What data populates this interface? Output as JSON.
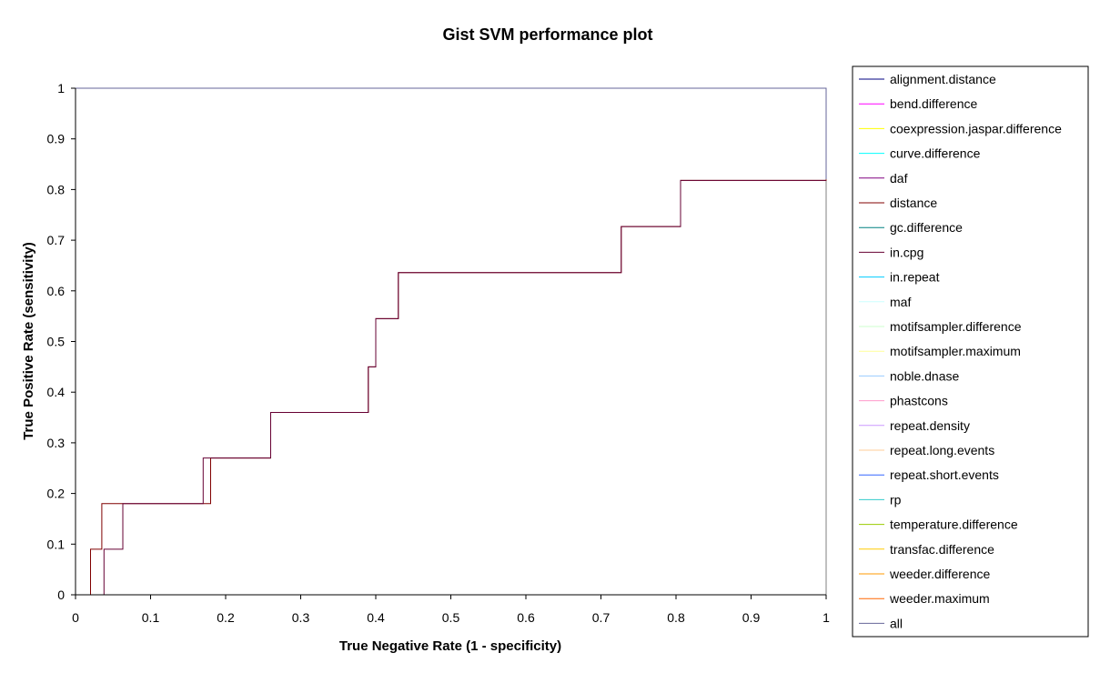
{
  "chart_data": {
    "type": "line",
    "title": "Gist SVM performance plot",
    "xlabel": "True Negative Rate (1 - specificity)",
    "ylabel": "True Positive Rate (sensitivity)",
    "xlim": [
      0,
      1
    ],
    "ylim": [
      0,
      1
    ],
    "xticks": [
      "0",
      "0.1",
      "0.2",
      "0.3",
      "0.4",
      "0.5",
      "0.6",
      "0.7",
      "0.8",
      "0.9",
      "1"
    ],
    "yticks": [
      "0",
      "0.1",
      "0.2",
      "0.3",
      "0.4",
      "0.5",
      "0.6",
      "0.7",
      "0.8",
      "0.9",
      "1"
    ],
    "grid": false,
    "legend_position": "right",
    "series": [
      {
        "name": "alignment.distance",
        "color": "#000080",
        "points": [
          [
            0.0,
            0
          ],
          [
            0.0,
            1
          ],
          [
            1,
            1
          ],
          [
            1,
            0.82
          ]
        ]
      },
      {
        "name": "bend.difference",
        "color": "#ff00ff",
        "points": [
          [
            0.0,
            0
          ],
          [
            0.0,
            1
          ],
          [
            1,
            1
          ],
          [
            1,
            0.82
          ]
        ]
      },
      {
        "name": "coexpression.jaspar.difference",
        "color": "#ffff00",
        "points": [
          [
            0.0,
            0
          ],
          [
            0.0,
            1
          ],
          [
            1,
            1
          ],
          [
            1,
            0.82
          ]
        ]
      },
      {
        "name": "curve.difference",
        "color": "#00ffff",
        "points": [
          [
            0.0,
            0
          ],
          [
            0.0,
            1
          ],
          [
            1,
            1
          ],
          [
            1,
            0.82
          ]
        ]
      },
      {
        "name": "daf",
        "color": "#800080",
        "points": [
          [
            0.0,
            0
          ],
          [
            0.0,
            1
          ],
          [
            1,
            1
          ],
          [
            1,
            0.82
          ]
        ]
      },
      {
        "name": "distance",
        "color": "#800000",
        "points": [
          [
            0.02,
            0
          ],
          [
            0.02,
            0.09
          ],
          [
            0.035,
            0.09
          ],
          [
            0.035,
            0.18
          ],
          [
            0.18,
            0.18
          ],
          [
            0.18,
            0.27
          ],
          [
            0.26,
            0.27
          ],
          [
            0.26,
            0.36
          ],
          [
            0.39,
            0.36
          ],
          [
            0.39,
            0.45
          ],
          [
            0.4,
            0.45
          ],
          [
            0.4,
            0.545
          ],
          [
            0.43,
            0.545
          ],
          [
            0.43,
            0.636
          ],
          [
            0.727,
            0.636
          ],
          [
            0.727,
            0.727
          ],
          [
            0.806,
            0.727
          ],
          [
            0.806,
            0.818
          ],
          [
            1,
            0.818
          ],
          [
            1,
            1
          ]
        ]
      },
      {
        "name": "gc.difference",
        "color": "#008080",
        "points": [
          [
            0.0,
            0
          ],
          [
            0.0,
            1
          ],
          [
            1,
            1
          ],
          [
            1,
            0.82
          ]
        ]
      },
      {
        "name": "in.cpg",
        "color": "#660033",
        "points": [
          [
            0.038,
            0
          ],
          [
            0.038,
            0.09
          ],
          [
            0.063,
            0.09
          ],
          [
            0.063,
            0.18
          ],
          [
            0.17,
            0.18
          ],
          [
            0.17,
            0.27
          ],
          [
            0.26,
            0.27
          ],
          [
            0.26,
            0.36
          ],
          [
            0.39,
            0.36
          ],
          [
            0.39,
            0.45
          ],
          [
            0.4,
            0.45
          ],
          [
            0.4,
            0.545
          ],
          [
            0.43,
            0.545
          ],
          [
            0.43,
            0.636
          ],
          [
            0.727,
            0.636
          ],
          [
            0.727,
            0.727
          ],
          [
            0.806,
            0.727
          ],
          [
            0.806,
            0.818
          ],
          [
            1,
            0.818
          ]
        ]
      },
      {
        "name": "in.repeat",
        "color": "#00ccff",
        "points": [
          [
            0.0,
            0
          ],
          [
            0.0,
            1
          ],
          [
            1,
            1
          ],
          [
            1,
            0.82
          ]
        ]
      },
      {
        "name": "maf",
        "color": "#ccffff",
        "points": [
          [
            0.0,
            0
          ],
          [
            0.0,
            1
          ],
          [
            1,
            1
          ],
          [
            1,
            0.82
          ]
        ]
      },
      {
        "name": "motifsampler.difference",
        "color": "#ccffcc",
        "points": [
          [
            0.0,
            0
          ],
          [
            0.0,
            1
          ],
          [
            1,
            1
          ],
          [
            1,
            0.82
          ]
        ]
      },
      {
        "name": "motifsampler.maximum",
        "color": "#ffff99",
        "points": [
          [
            0.0,
            0
          ],
          [
            0.0,
            1
          ],
          [
            1,
            1
          ],
          [
            1,
            0.82
          ]
        ]
      },
      {
        "name": "noble.dnase",
        "color": "#99ccff",
        "points": [
          [
            0.0,
            0
          ],
          [
            0.0,
            1
          ],
          [
            1,
            1
          ],
          [
            1,
            0.82
          ]
        ]
      },
      {
        "name": "phastcons",
        "color": "#ff99cc",
        "points": [
          [
            0.0,
            0
          ],
          [
            0.0,
            1
          ],
          [
            1,
            1
          ],
          [
            1,
            0.82
          ]
        ]
      },
      {
        "name": "repeat.density",
        "color": "#cc99ff",
        "points": [
          [
            0.0,
            0
          ],
          [
            0.0,
            1
          ],
          [
            1,
            1
          ],
          [
            1,
            0.82
          ]
        ]
      },
      {
        "name": "repeat.long.events",
        "color": "#ffcc99",
        "points": [
          [
            0.0,
            0
          ],
          [
            0.0,
            1
          ],
          [
            1,
            1
          ],
          [
            1,
            0.82
          ]
        ]
      },
      {
        "name": "repeat.short.events",
        "color": "#3366ff",
        "points": [
          [
            0.0,
            0
          ],
          [
            0.0,
            1
          ],
          [
            1,
            1
          ],
          [
            1,
            0.82
          ]
        ]
      },
      {
        "name": "rp",
        "color": "#33cccc",
        "points": [
          [
            0.0,
            0
          ],
          [
            0.0,
            1
          ],
          [
            1,
            1
          ],
          [
            1,
            0.82
          ]
        ]
      },
      {
        "name": "temperature.difference",
        "color": "#99cc00",
        "points": [
          [
            0.0,
            0
          ],
          [
            0.0,
            1
          ],
          [
            1,
            1
          ],
          [
            1,
            0.82
          ]
        ]
      },
      {
        "name": "transfac.difference",
        "color": "#ffcc00",
        "points": [
          [
            0.0,
            0
          ],
          [
            0.0,
            1
          ],
          [
            1,
            1
          ],
          [
            1,
            0.82
          ]
        ]
      },
      {
        "name": "weeder.difference",
        "color": "#ff9900",
        "points": [
          [
            0.0,
            0
          ],
          [
            0.0,
            1
          ],
          [
            1,
            1
          ],
          [
            1,
            0.82
          ]
        ]
      },
      {
        "name": "weeder.maximum",
        "color": "#ff6600",
        "points": [
          [
            0.0,
            0
          ],
          [
            0.0,
            1
          ],
          [
            1,
            1
          ],
          [
            1,
            0.82
          ]
        ]
      },
      {
        "name": "all",
        "color": "#666699",
        "points": [
          [
            0.0,
            0
          ],
          [
            0.0,
            1
          ],
          [
            1,
            1
          ],
          [
            1,
            0.82
          ]
        ]
      }
    ]
  }
}
